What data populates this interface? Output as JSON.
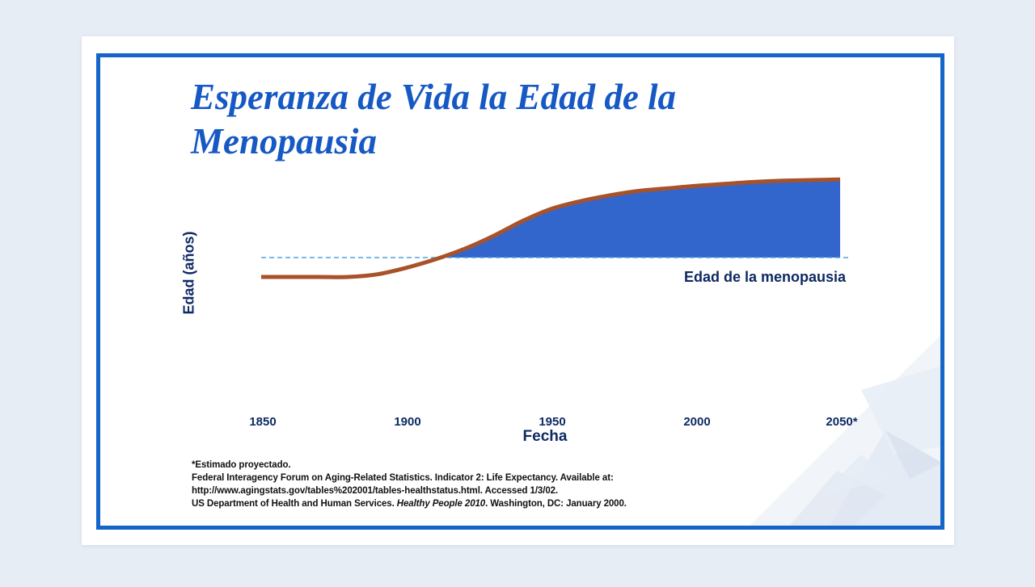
{
  "title": "Esperanza de Vida la Edad de la Menopausia",
  "colors": {
    "frame": "#1565c8",
    "title": "#1658c4",
    "fill": "#3366cc",
    "line": "#a8522a",
    "menopause_line": "#4fa3e0",
    "text_dark": "#0e2a63"
  },
  "chart_data": {
    "type": "area",
    "title": "Esperanza de Vida la Edad de la Menopausia",
    "xlabel": "Fecha",
    "ylabel": "Edad (años)",
    "x_ticks": [
      "1850",
      "1900",
      "1950",
      "2000",
      "2050*"
    ],
    "xlim": [
      1850,
      2050
    ],
    "y_tick_labels_shown": false,
    "series": [
      {
        "type": "line",
        "x": [
          1850,
          1860,
          1870,
          1880,
          1890,
          1900,
          1910,
          1920,
          1930,
          1940,
          1950,
          1960,
          1970,
          1980,
          1990,
          2000,
          2010,
          2020,
          2030,
          2040,
          2050
        ],
        "y": [
          0.0,
          0.0,
          0.0,
          0.0,
          0.04,
          0.14,
          0.27,
          0.43,
          0.63,
          0.86,
          1.05,
          1.17,
          1.26,
          1.33,
          1.37,
          1.41,
          1.44,
          1.47,
          1.49,
          1.5,
          1.51
        ]
      }
    ],
    "reference_line": {
      "label": "Edad de la menopausia",
      "y": 0.3,
      "style": "dashed"
    },
    "shaded_area": "between life expectancy line and menopause line where above",
    "grid": false,
    "legend": "none"
  },
  "footnotes": {
    "line1": "*Estimado proyectado.",
    "line2": "Federal Interagency Forum on Aging-Related Statistics. Indicator 2: Life Expectancy. Available at:",
    "line3": "http://www.agingstats.gov/tables%202001/tables-healthstatus.html.  Accessed 1/3/02.",
    "line4_pre": "US Department of Health and Human Services. ",
    "line4_italic": "Healthy People 2010",
    "line4_post": ". Washington,  DC: January 2000."
  }
}
